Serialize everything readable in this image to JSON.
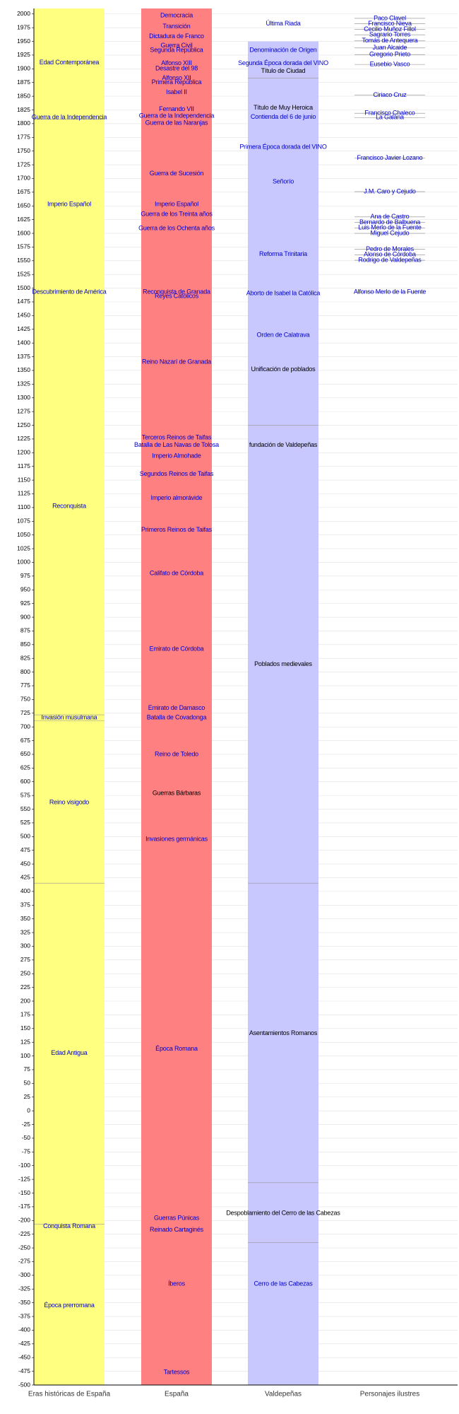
{
  "chart_data": {
    "type": "timeline",
    "ylim": [
      -500,
      2010
    ],
    "yticks": [
      -500,
      -475,
      -450,
      -425,
      -400,
      -375,
      -350,
      -325,
      -300,
      -275,
      -250,
      -225,
      -200,
      -175,
      -150,
      -125,
      -100,
      -75,
      -50,
      -25,
      0,
      25,
      50,
      75,
      100,
      125,
      150,
      175,
      200,
      225,
      250,
      275,
      300,
      325,
      350,
      375,
      400,
      425,
      450,
      475,
      500,
      525,
      550,
      575,
      600,
      625,
      650,
      675,
      700,
      725,
      750,
      775,
      800,
      825,
      850,
      875,
      900,
      925,
      950,
      975,
      1000,
      1025,
      1050,
      1075,
      1100,
      1125,
      1150,
      1175,
      1200,
      1225,
      1250,
      1275,
      1300,
      1325,
      1350,
      1375,
      1400,
      1425,
      1450,
      1475,
      1500,
      1525,
      1550,
      1575,
      1600,
      1625,
      1650,
      1675,
      1700,
      1725,
      1750,
      1775,
      1800,
      1825,
      1850,
      1875,
      1900,
      1925,
      1950,
      1975,
      2000
    ],
    "grid": true,
    "columns": [
      {
        "name": "Eras históricas de España",
        "color": "#ffff80",
        "range": [
          -500,
          2010
        ],
        "divisions": [
          1808,
          722,
          711,
          415,
          -207
        ],
        "items": [
          {
            "label": "Edad Contemporánea",
            "year": 1911
          },
          {
            "label": "Guerra de la Independencia",
            "year": 1811
          },
          {
            "label": "Imperio Español",
            "year": 1653
          },
          {
            "label": "Descubrimiento de América",
            "year": 1493
          },
          {
            "label": "Reconquista",
            "year": 1102
          },
          {
            "label": "Invasión musulmana",
            "year": 717
          },
          {
            "label": "Reino visigodo",
            "year": 562
          },
          {
            "label": "Edad Antigua",
            "year": 105
          },
          {
            "label": "Conquista Romana",
            "year": -211
          },
          {
            "label": "Época prerromana",
            "year": -355
          }
        ]
      },
      {
        "name": "España",
        "color": "#ff8080",
        "range": [
          -500,
          2010
        ],
        "divisions": [],
        "items": [
          {
            "label": "Democracia",
            "year": 1997
          },
          {
            "label": "Transición",
            "year": 1977
          },
          {
            "label": "Dictadura de Franco",
            "year": 1959
          },
          {
            "label": "Guerra Civil",
            "year": 1942
          },
          {
            "label": "Segunda República",
            "year": 1934
          },
          {
            "label": "Alfonso XIII",
            "year": 1910
          },
          {
            "label": "Desastre del 98",
            "year": 1900
          },
          {
            "label": "Alfonso XII",
            "year": 1883
          },
          {
            "label": "Primera República",
            "year": 1875
          },
          {
            "label": "Isabel II",
            "year": 1857
          },
          {
            "label": "Fernando VII",
            "year": 1826
          },
          {
            "label": "Guerra de la Independencia",
            "year": 1814
          },
          {
            "label": "Guerra de las Naranjas",
            "year": 1801
          },
          {
            "label": "Guerra de Sucesión",
            "year": 1709
          },
          {
            "label": "Imperio Español",
            "year": 1653
          },
          {
            "label": "Guerra de los Treinta años",
            "year": 1635
          },
          {
            "label": "Guerra de los Ochenta años",
            "year": 1609
          },
          {
            "label": "Reconquista de Granada",
            "year": 1493
          },
          {
            "label": "Reyes Católicos",
            "year": 1485
          },
          {
            "label": "Reino Nazarí de Granada",
            "year": 1365
          },
          {
            "label": "Terceros Reinos de Taifas",
            "year": 1227
          },
          {
            "label": "Batalla de Las Navas de Tolosa",
            "year": 1214
          },
          {
            "label": "Imperio Almohade",
            "year": 1194
          },
          {
            "label": "Segundos Reinos de Taifas",
            "year": 1161
          },
          {
            "label": "Imperio almorávide",
            "year": 1117
          },
          {
            "label": "Primeros Reinos de Taifas",
            "year": 1059
          },
          {
            "label": "Califato de Córdoba",
            "year": 980
          },
          {
            "label": "Emirato de Córdoba",
            "year": 842
          },
          {
            "label": "Emirato de Damasco",
            "year": 734
          },
          {
            "label": "Batalla de Covadonga",
            "year": 717
          },
          {
            "label": "Reino de Toledo",
            "year": 650
          },
          {
            "label": "Guerras Bárbaras",
            "year": 579,
            "color": "#000000"
          },
          {
            "label": "Invasiones germánicas",
            "year": 495
          },
          {
            "label": "Época Romana",
            "year": 113
          },
          {
            "label": "Guerras Púnicas",
            "year": -196
          },
          {
            "label": "Reinado Cartaginés",
            "year": -217
          },
          {
            "label": "Íberos",
            "year": -316
          },
          {
            "label": "Tartessos",
            "year": -477
          }
        ]
      },
      {
        "name": "Valdepeñas",
        "color": "#c8c8ff",
        "range": [
          -500,
          1950
        ],
        "divisions": [
          1883,
          1250,
          415,
          -131,
          -240
        ],
        "items": [
          {
            "label": "Última Riada",
            "year": 1982
          },
          {
            "label": "Denominación de Origen",
            "year": 1934
          },
          {
            "label": "Segunda Época dorada del VINO",
            "year": 1910
          },
          {
            "label": "Título de Ciudad",
            "year": 1896,
            "color": "#000000"
          },
          {
            "label": "Título de Muy Heroica",
            "year": 1829,
            "color": "#000000"
          },
          {
            "label": "Contienda del 6 de junio",
            "year": 1812
          },
          {
            "label": "Primera Época dorada del VINO",
            "year": 1757
          },
          {
            "label": "Señorío",
            "year": 1694
          },
          {
            "label": "Reforma Trinitaria",
            "year": 1562
          },
          {
            "label": "Aborto de Isabel la Católica",
            "year": 1490
          },
          {
            "label": "Orden de Calatrava",
            "year": 1414
          },
          {
            "label": "Unificación de poblados",
            "year": 1352,
            "color": "#000000"
          },
          {
            "label": "fundación de Valdepeñas",
            "year": 1214,
            "color": "#000000"
          },
          {
            "label": "Poblados medievales",
            "year": 814,
            "color": "#000000"
          },
          {
            "label": "Asentamientos Romanos",
            "year": 141,
            "color": "#000000"
          },
          {
            "label": "Despoblamiento del Cerro de las Cabezas",
            "year": -187,
            "color": "#000000"
          },
          {
            "label": "Cerro de las Cabezas",
            "year": -316
          }
        ]
      },
      {
        "name": "Personajes ilustres",
        "item_lines": true,
        "divisions": [],
        "items": [
          {
            "label": "Paco Clavel",
            "year": 1992
          },
          {
            "label": "Francisco Nieva",
            "year": 1982
          },
          {
            "label": "Cecilio Muñoz Fillol",
            "year": 1972
          },
          {
            "label": "Sagrario Torres",
            "year": 1962
          },
          {
            "label": "Tomás de Antequera",
            "year": 1951
          },
          {
            "label": "Juan Alcaide",
            "year": 1938
          },
          {
            "label": "Gregorio Prieto",
            "year": 1926
          },
          {
            "label": "Eusebio Vasco",
            "year": 1908
          },
          {
            "label": "Ciriaco Cruz",
            "year": 1852
          },
          {
            "label": "Francisco Chaleco",
            "year": 1819
          },
          {
            "label": "La Galana",
            "year": 1811
          },
          {
            "label": "Francisco Javier Lozano",
            "year": 1737
          },
          {
            "label": "J.M. Caro y Cejudo",
            "year": 1676
          },
          {
            "label": "Ana de Castro",
            "year": 1630
          },
          {
            "label": "Bernardo de Balbuena",
            "year": 1620
          },
          {
            "label": "Luis Merlo de la Fuente",
            "year": 1610
          },
          {
            "label": "Miguel Cejudo",
            "year": 1600
          },
          {
            "label": "Pedro de Morales",
            "year": 1571
          },
          {
            "label": "Alonso de Córdoba",
            "year": 1561
          },
          {
            "label": "Rodrigo de Valdepeñas",
            "year": 1551
          },
          {
            "label": "Alfonso Merlo de la Fuente",
            "year": 1493
          }
        ]
      }
    ]
  }
}
